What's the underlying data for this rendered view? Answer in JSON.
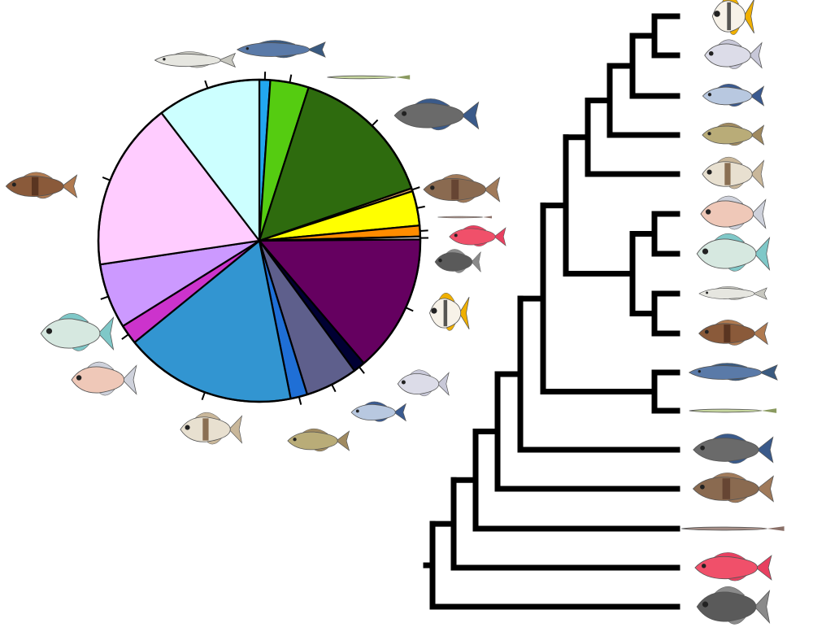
{
  "chart_data": {
    "type": "pie",
    "title": "",
    "slices": [
      {
        "label": "",
        "percent": 1.1,
        "color": "#22a7f0"
      },
      {
        "label": "",
        "percent": 3.9,
        "color": "#55cc11"
      },
      {
        "label": "",
        "percent": 14.9,
        "color": "#2e6b0e"
      },
      {
        "label": "",
        "percent": 0.3,
        "color": "#e0a860"
      },
      {
        "label": "",
        "percent": 3.5,
        "color": "#ffff00"
      },
      {
        "label": "",
        "percent": 1.1,
        "color": "#ff8c00"
      },
      {
        "label": "",
        "percent": 0.3,
        "color": "#ffffff"
      },
      {
        "label": "",
        "percent": 14.0,
        "color": "#650060"
      },
      {
        "label": "",
        "percent": 1.2,
        "color": "#000033"
      },
      {
        "label": "",
        "percent": 5.3,
        "color": "#5e5f8c"
      },
      {
        "label": "",
        "percent": 1.7,
        "color": "#1f6fd6"
      },
      {
        "label": "",
        "percent": 17.4,
        "color": "#3295d1"
      },
      {
        "label": "",
        "percent": 2.0,
        "color": "#cc33cc"
      },
      {
        "label": "",
        "percent": 6.6,
        "color": "#cc99ff"
      },
      {
        "label": "",
        "percent": 17.1,
        "color": "#ffccff"
      },
      {
        "label": "",
        "percent": 10.5,
        "color": "#ccffff"
      }
    ],
    "pie_fish": [
      {
        "icon": "mackerel-icon"
      },
      {
        "icon": "needlefish-icon"
      },
      {
        "icon": "flathead-icon"
      },
      {
        "icon": "grouper-icon"
      },
      {
        "icon": "eel-icon"
      },
      {
        "icon": "red-squirrelfish-icon"
      },
      {
        "icon": "dark-sweeper-icon"
      },
      {
        "icon": "butterflyfish-icon"
      },
      {
        "icon": "silver-moonfish-icon"
      },
      {
        "icon": "blue-wrasse-icon"
      },
      {
        "icon": "olive-bass-icon"
      },
      {
        "icon": "banded-grunt-icon"
      },
      {
        "icon": "pink-flatfish-icon"
      },
      {
        "icon": "trevally-icon"
      },
      {
        "icon": "mottled-scorpionfish-icon"
      },
      {
        "icon": "silverside-icon"
      }
    ],
    "tree_leaves": [
      {
        "icon": "butterflyfish-icon"
      },
      {
        "icon": "silver-moonfish-icon"
      },
      {
        "icon": "blue-wrasse-icon"
      },
      {
        "icon": "olive-bass-icon"
      },
      {
        "icon": "banded-grunt-icon"
      },
      {
        "icon": "pink-flatfish-icon"
      },
      {
        "icon": "trevally-icon"
      },
      {
        "icon": "silverside-icon"
      },
      {
        "icon": "mottled-scorpionfish-icon"
      },
      {
        "icon": "mackerel-icon"
      },
      {
        "icon": "needlefish-icon"
      },
      {
        "icon": "flathead-icon"
      },
      {
        "icon": "grouper-icon"
      },
      {
        "icon": "eel-icon"
      },
      {
        "icon": "red-squirrelfish-icon"
      },
      {
        "icon": "dark-sweeper-icon"
      }
    ]
  }
}
